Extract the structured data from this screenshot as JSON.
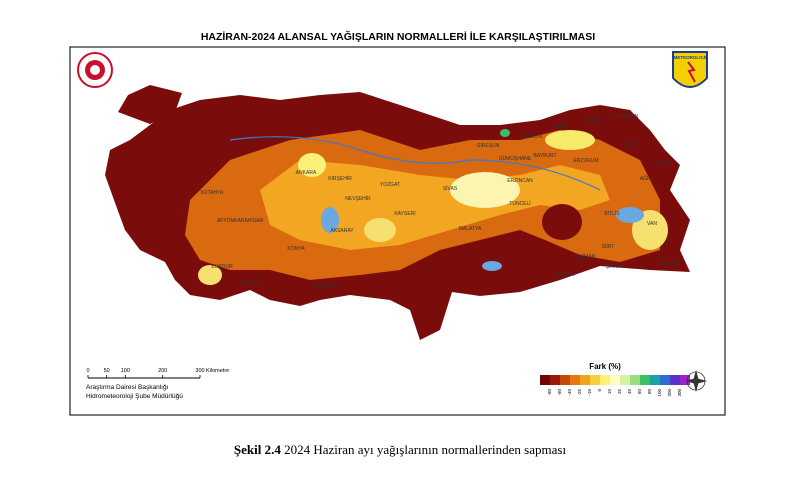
{
  "header": {
    "title": "HAZİRAN-2024 ALANSAL YAĞIŞLARIN NORMALLERİ İLE KARŞILAŞTIRILMASI",
    "logo_right": "METEOROLOJİ"
  },
  "map": {
    "cities": [
      "ANKARA",
      "KONYA",
      "YOZGAT",
      "KAYSERİ",
      "SİVAS",
      "TRABZON",
      "RİZE",
      "ARTVİN",
      "ARDAHAN",
      "KARS",
      "AĞRI",
      "IĞDIR",
      "ERZURUM",
      "ERZİNCAN",
      "BAYBURT",
      "GÜMÜŞHANE",
      "GİRESUN",
      "TUNCELİ",
      "MALATYA",
      "BİTLİS",
      "VAN",
      "HAKKARİ",
      "ŞIRNAK",
      "SİİRT",
      "BATMAN",
      "MARDİN",
      "KARAMAN",
      "ANTALYA",
      "BURDUR",
      "KÜTAHYA",
      "AFYONKARAHİSAR",
      "NEVŞEHİR",
      "AKSARAY",
      "KIRŞEHİR"
    ]
  },
  "legend": {
    "title": "Fark (%)",
    "ticks": [
      -80,
      -60,
      -40,
      -25,
      -10,
      0,
      10,
      25,
      40,
      60,
      80,
      100,
      200,
      300
    ],
    "colors": [
      "#6e0606",
      "#9a1a0a",
      "#c44a0c",
      "#e27a10",
      "#f0a41e",
      "#f8cf3a",
      "#fff07a",
      "#fbffc4",
      "#d6f0a6",
      "#98de7a",
      "#3cbf63",
      "#1fa0a8",
      "#2a6fd0",
      "#5a32c8",
      "#a020d0"
    ]
  },
  "scale": {
    "ticks": [
      0,
      50,
      100,
      200,
      300
    ],
    "unit": "Kilometre",
    "org1": "Araştırma Dairesi Başkanlığı",
    "org2": "Hidrometeoroloji Şube Müdürlüğü"
  },
  "caption": {
    "label": "Şekil 2.4",
    "text": "2024 Haziran ayı yağışlarının normallerinden sapması"
  }
}
